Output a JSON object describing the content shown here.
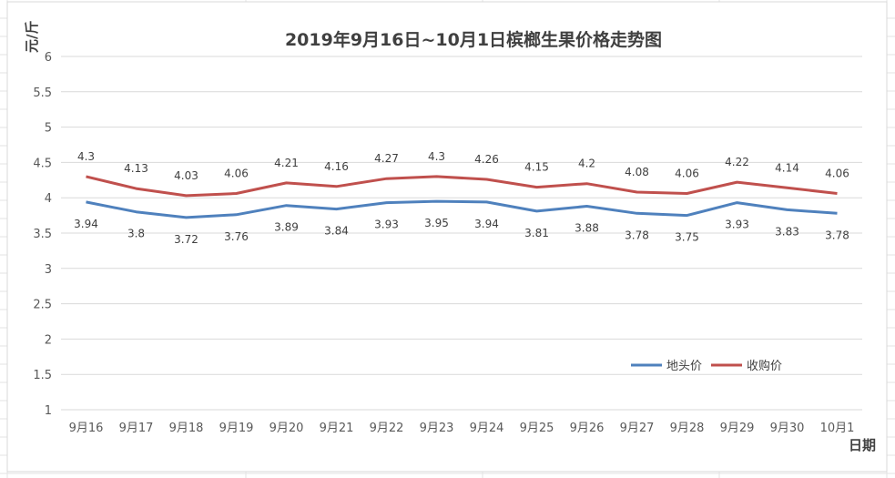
{
  "chart_data": {
    "type": "line",
    "title": "2019年9月16日~10月1日槟榔生果价格走势图",
    "xlabel": "日期",
    "ylabel": "元/斤",
    "ylim": [
      1,
      6
    ],
    "ytick_step": 0.5,
    "yticks": [
      "1",
      "1.5",
      "2",
      "2.5",
      "3",
      "3.5",
      "4",
      "4.5",
      "5",
      "5.5",
      "6"
    ],
    "grid": true,
    "legend_position": "bottom-right",
    "categories": [
      "9月16",
      "9月17",
      "9月18",
      "9月19",
      "9月20",
      "9月21",
      "9月22",
      "9月23",
      "9月24",
      "9月25",
      "9月26",
      "9月27",
      "9月28",
      "9月29",
      "9月30",
      "10月1"
    ],
    "series": [
      {
        "name": "地头价",
        "color": "#4F81BD",
        "label_position": "below",
        "values": [
          3.94,
          3.8,
          3.72,
          3.76,
          3.89,
          3.84,
          3.93,
          3.95,
          3.94,
          3.81,
          3.88,
          3.78,
          3.75,
          3.93,
          3.83,
          3.78
        ]
      },
      {
        "name": "收购价",
        "color": "#C0504D",
        "label_position": "above",
        "values": [
          4.3,
          4.13,
          4.03,
          4.06,
          4.21,
          4.16,
          4.27,
          4.3,
          4.26,
          4.15,
          4.2,
          4.08,
          4.06,
          4.22,
          4.14,
          4.06
        ]
      }
    ]
  }
}
